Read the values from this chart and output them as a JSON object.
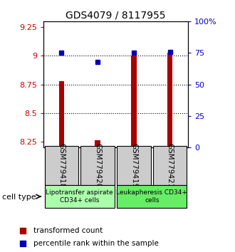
{
  "title": "GDS4079 / 8117955",
  "samples": [
    "GSM779418",
    "GSM779420",
    "GSM779419",
    "GSM779421"
  ],
  "red_values": [
    8.78,
    8.26,
    9.0,
    9.03
  ],
  "blue_values": [
    0.75,
    0.68,
    0.75,
    0.76
  ],
  "ylim_left": [
    8.2,
    9.3
  ],
  "ylim_right": [
    0.0,
    1.0
  ],
  "yticks_left": [
    8.25,
    8.5,
    8.75,
    9.0,
    9.25
  ],
  "ytick_labels_left": [
    "8.25",
    "8.5",
    "8.75",
    "9",
    "9.25"
  ],
  "yticks_right": [
    0.0,
    0.25,
    0.5,
    0.75,
    1.0
  ],
  "ytick_labels_right": [
    "0",
    "25",
    "50",
    "75",
    "100%"
  ],
  "gridlines": [
    8.5,
    8.75,
    9.0
  ],
  "groups": [
    {
      "label": "Lipotransfer aspirate\nCD34+ cells",
      "samples": [
        0,
        1
      ],
      "color": "#aaffaa"
    },
    {
      "label": "Leukapheresis CD34+\ncells",
      "samples": [
        2,
        3
      ],
      "color": "#66ee66"
    }
  ],
  "bar_color": "#aa0000",
  "dot_color": "#0000bb",
  "sample_bg_color": "#cccccc",
  "legend_red_label": "transformed count",
  "legend_blue_label": "percentile rank within the sample",
  "cell_type_label": "cell type"
}
